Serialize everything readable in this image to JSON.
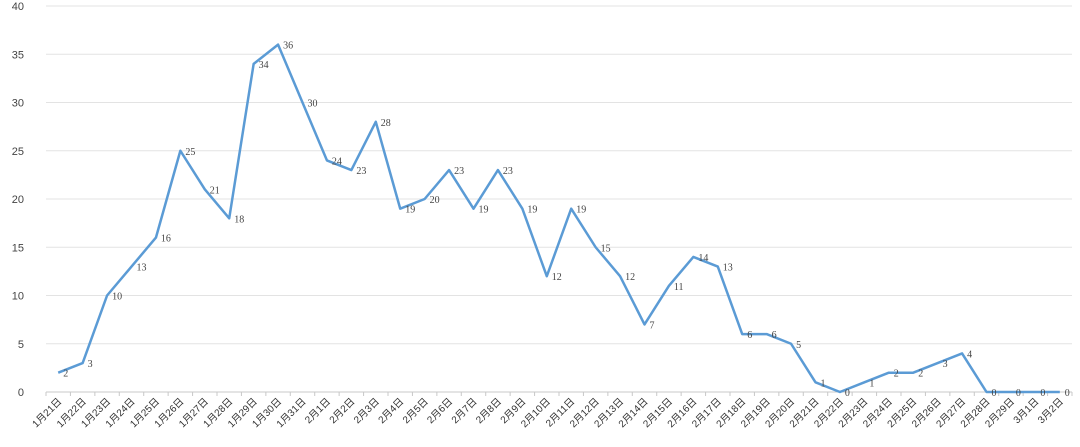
{
  "chart_data": {
    "type": "line",
    "title": "",
    "xlabel": "",
    "ylabel": "",
    "ylim": [
      0,
      40
    ],
    "ytick_values": [
      0,
      5,
      10,
      15,
      20,
      25,
      30,
      35,
      40
    ],
    "grid": true,
    "legend": "none",
    "line_color": "#5b9bd5",
    "categories": [
      "1月21日",
      "1月22日",
      "1月23日",
      "1月24日",
      "1月25日",
      "1月26日",
      "1月27日",
      "1月28日",
      "1月29日",
      "1月30日",
      "1月31日",
      "2月1日",
      "2月2日",
      "2月3日",
      "2月4日",
      "2月5日",
      "2月6日",
      "2月7日",
      "2月8日",
      "2月9日",
      "2月10日",
      "2月11日",
      "2月12日",
      "2月13日",
      "2月14日",
      "2月15日",
      "2月16日",
      "2月17日",
      "2月18日",
      "2月19日",
      "2月20日",
      "2月21日",
      "2月22日",
      "2月23日",
      "2月24日",
      "2月25日",
      "2月26日",
      "2月27日",
      "2月28日",
      "2月29日",
      "3月1日",
      "3月2日"
    ],
    "series": [
      {
        "values": [
          2,
          3,
          10,
          13,
          16,
          25,
          21,
          18,
          34,
          36,
          30,
          24,
          23,
          28,
          19,
          20,
          23,
          19,
          23,
          19,
          12,
          19,
          15,
          12,
          7,
          11,
          14,
          13,
          6,
          6,
          5,
          1,
          0,
          1,
          2,
          2,
          3,
          4,
          0,
          0,
          0,
          0
        ]
      }
    ]
  }
}
